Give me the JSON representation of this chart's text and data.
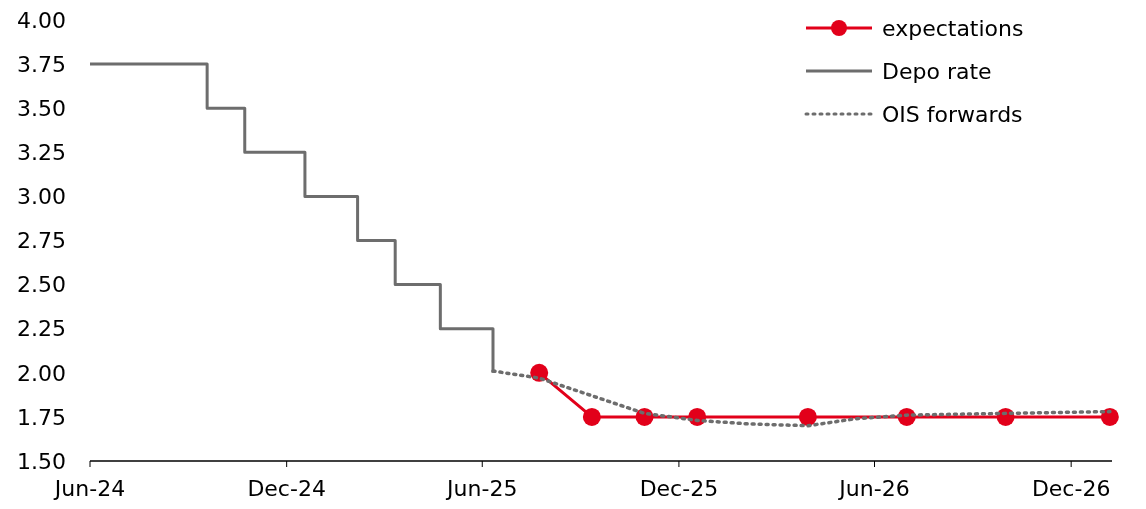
{
  "chart_data": {
    "type": "line",
    "xlim": [
      "2024-06-01",
      "2027-01-08"
    ],
    "ylim": [
      1.5,
      4
    ],
    "yticks": [
      {
        "value": 1.5,
        "label": "1.50"
      },
      {
        "value": 1.75,
        "label": "1.75"
      },
      {
        "value": 2,
        "label": "2.00"
      },
      {
        "value": 2.25,
        "label": "2.25"
      },
      {
        "value": 2.5,
        "label": "2.50"
      },
      {
        "value": 2.75,
        "label": "2.75"
      },
      {
        "value": 3,
        "label": "3.00"
      },
      {
        "value": 3.25,
        "label": "3.25"
      },
      {
        "value": 3.5,
        "label": "3.50"
      },
      {
        "value": 3.75,
        "label": "3.75"
      },
      {
        "value": 4,
        "label": "4.00"
      }
    ],
    "xticks": [
      {
        "value": "2024-06-01",
        "label": "Jun-24"
      },
      {
        "value": "2024-12-01",
        "label": "Dec-24"
      },
      {
        "value": "2025-06-01",
        "label": "Jun-25"
      },
      {
        "value": "2025-12-01",
        "label": "Dec-25"
      },
      {
        "value": "2026-06-01",
        "label": "Jun-26"
      },
      {
        "value": "2026-12-01",
        "label": "Dec-26"
      }
    ],
    "grid": false,
    "legend": "top right",
    "series": [
      {
        "name": "expectations",
        "color": "#e2001a",
        "marker": "circle",
        "line_style": "solid",
        "x": [
          "2025-07-24",
          "2025-09-11",
          "2025-10-30",
          "2025-12-18",
          "2026-03-31",
          "2026-07-01",
          "2026-10-01",
          "2027-01-06"
        ],
        "values": [
          2.0,
          1.75,
          1.75,
          1.75,
          1.75,
          1.75,
          1.75,
          1.75
        ]
      },
      {
        "name": "Depo rate",
        "type": "step",
        "color": "#6d6d6d",
        "marker": "none",
        "line_style": "solid",
        "x": [
          "2024-06-01",
          "2024-09-18",
          "2024-10-23",
          "2024-12-18",
          "2025-02-05",
          "2025-03-12",
          "2025-04-23",
          "2025-06-11"
        ],
        "values": [
          3.75,
          3.5,
          3.25,
          3.0,
          2.75,
          2.5,
          2.25,
          2.0
        ]
      },
      {
        "name": "OIS forwards",
        "color": "#6d6d6d",
        "marker": "none",
        "line_style": "dotted",
        "x": [
          "2025-06-11",
          "2025-07-24",
          "2025-09-11",
          "2025-10-30",
          "2025-12-18",
          "2026-02-05",
          "2026-03-31",
          "2026-05-15",
          "2026-07-01",
          "2026-10-01",
          "2027-01-06"
        ],
        "values": [
          2.01,
          1.97,
          1.87,
          1.77,
          1.73,
          1.71,
          1.7,
          1.74,
          1.76,
          1.77,
          1.78
        ]
      }
    ]
  }
}
